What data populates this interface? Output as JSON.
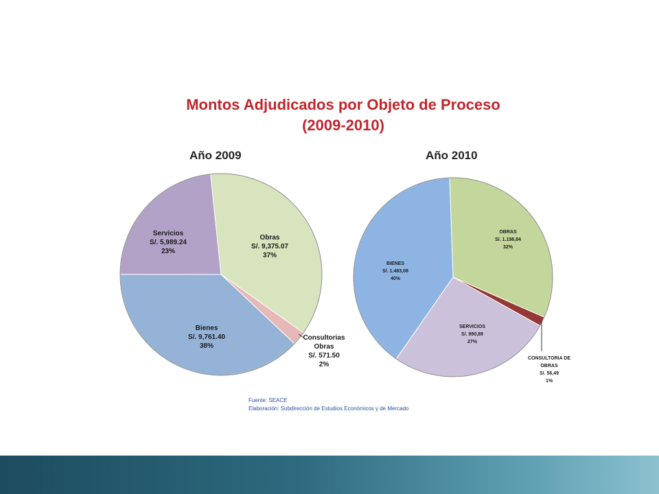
{
  "title_line1": "Montos Adjudicados por Objeto de Proceso",
  "title_line2": "(2009-2010)",
  "source_line1": "Fuente: SEACE",
  "source_line2": "Elaboración: Subdirección de Estudios Económicos y de Mercado",
  "chart_data": [
    {
      "type": "pie",
      "title": "Año 2009",
      "slices": [
        {
          "name": "Obras",
          "amount": "S/. 9,375.07",
          "value": 9375.07,
          "percent": "37%",
          "color": "#d7e4bd"
        },
        {
          "name": "Consultorias Obras",
          "amount": "S/. 571.50",
          "value": 571.5,
          "percent": "2%",
          "color": "#e6b9b8"
        },
        {
          "name": "Bienes",
          "amount": "S/. 9,761.40",
          "value": 9761.4,
          "percent": "38%",
          "color": "#95b3d7"
        },
        {
          "name": "Servicios",
          "amount": "S/. 5,989.24",
          "value": 5989.24,
          "percent": "23%",
          "color": "#b2a2c7"
        }
      ]
    },
    {
      "type": "pie",
      "title": "Año 2010",
      "slices": [
        {
          "name": "OBRAS",
          "amount": "S/. 1.198,84",
          "value": 1198.84,
          "percent": "32%",
          "color": "#c3d69b"
        },
        {
          "name": "CONSULTORIA DE OBRAS",
          "amount": "S/. 56,49",
          "value": 56.49,
          "percent": "1%",
          "color": "#953735"
        },
        {
          "name": "SERVICIOS",
          "amount": "S/. 990,89",
          "value": 990.89,
          "percent": "27%",
          "color": "#ccc1da"
        },
        {
          "name": "BIENES",
          "amount": "S/. 1.483,08",
          "value": 1483.08,
          "percent": "40%",
          "color": "#8eb4e3"
        }
      ]
    }
  ]
}
